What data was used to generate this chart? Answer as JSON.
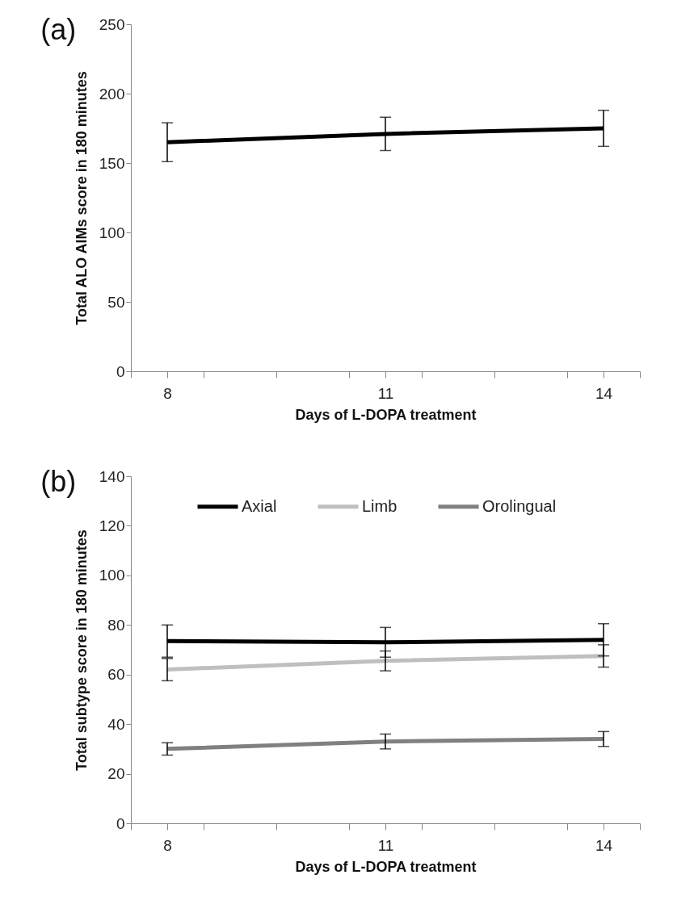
{
  "chart_data": [
    {
      "type": "line",
      "title": "(a)",
      "xlabel": "Days of L-DOPA treatment",
      "ylabel": "Total ALO AIMs score in 180 minutes",
      "x": [
        8,
        11,
        14
      ],
      "xlim": [
        7.5,
        14.5
      ],
      "xticks": [
        {
          "value": 7.5,
          "label": null
        },
        8,
        {
          "value": 8.5,
          "label": null
        },
        {
          "value": 9.5,
          "label": null
        },
        {
          "value": 10.5,
          "label": null
        },
        11,
        {
          "value": 11.5,
          "label": null
        },
        {
          "value": 12.5,
          "label": null
        },
        {
          "value": 13.5,
          "label": null
        },
        14,
        {
          "value": 14.5,
          "label": null
        }
      ],
      "ylim": [
        0,
        250
      ],
      "yticks": [
        0,
        50,
        100,
        150,
        200,
        250
      ],
      "grid": false,
      "legend": false,
      "series": [
        {
          "color": "#000000",
          "values": [
            165,
            171,
            175
          ],
          "errors": [
            14,
            12,
            13
          ]
        }
      ]
    },
    {
      "type": "line",
      "title": "(b)",
      "xlabel": "Days of L-DOPA treatment",
      "ylabel": "Total subtype score in 180 minutes",
      "x": [
        8,
        11,
        14
      ],
      "xlim": [
        7.5,
        14.5
      ],
      "xticks": [
        {
          "value": 7.5,
          "label": null
        },
        8,
        {
          "value": 8.5,
          "label": null
        },
        {
          "value": 9.5,
          "label": null
        },
        {
          "value": 10.5,
          "label": null
        },
        11,
        {
          "value": 11.5,
          "label": null
        },
        {
          "value": 12.5,
          "label": null
        },
        {
          "value": 13.5,
          "label": null
        },
        14,
        {
          "value": 14.5,
          "label": null
        }
      ],
      "ylim": [
        0,
        140
      ],
      "yticks": [
        0,
        20,
        40,
        60,
        80,
        100,
        120,
        140
      ],
      "grid": false,
      "legend": "top",
      "series": [
        {
          "name": "Axial",
          "color": "#000000",
          "values": [
            73.5,
            73,
            74
          ],
          "errors": [
            6.5,
            6,
            6.5
          ]
        },
        {
          "name": "Limb",
          "color": "#bfbfbf",
          "values": [
            62,
            65.5,
            67.5
          ],
          "errors": [
            4.5,
            4,
            4.5
          ]
        },
        {
          "name": "Orolingual",
          "color": "#808080",
          "values": [
            30,
            33,
            34
          ],
          "errors": [
            2.5,
            3,
            3
          ]
        }
      ]
    }
  ]
}
